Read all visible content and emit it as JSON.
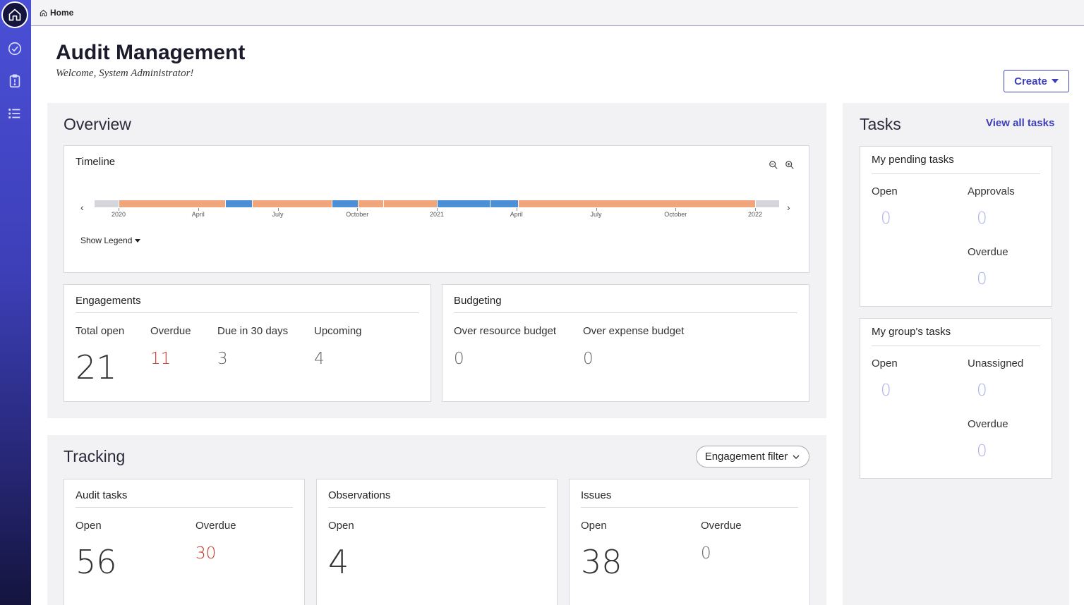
{
  "breadcrumb": {
    "home_label": "Home"
  },
  "header": {
    "title": "Audit Management",
    "subtitle": "Welcome, System Administrator!",
    "create_label": "Create"
  },
  "colors": {
    "accent": "#3d3fb8",
    "planned": "#f0a57a",
    "active": "#4b8fd6",
    "idle": "#d4d6dc",
    "danger": "#c0392b"
  },
  "overview": {
    "title": "Overview",
    "timeline": {
      "title": "Timeline",
      "show_legend": "Show Legend",
      "tick_labels": [
        "2020",
        "April",
        "July",
        "October",
        "2021",
        "April",
        "July",
        "October",
        "2022"
      ],
      "segments": [
        {
          "kind": "idle",
          "weight": 34
        },
        {
          "kind": "planned",
          "weight": 150
        },
        {
          "kind": "active",
          "weight": 38
        },
        {
          "kind": "planned",
          "weight": 113
        },
        {
          "kind": "active",
          "weight": 37
        },
        {
          "kind": "planned",
          "weight": 36
        },
        {
          "kind": "planned",
          "weight": 76
        },
        {
          "kind": "active",
          "weight": 74
        },
        {
          "kind": "active",
          "weight": 40
        },
        {
          "kind": "planned",
          "weight": 335
        },
        {
          "kind": "idle",
          "weight": 34
        }
      ]
    },
    "engagements": {
      "title": "Engagements",
      "total_open_label": "Total open",
      "total_open": "21",
      "overdue_label": "Overdue",
      "overdue": "11",
      "due30_label": "Due in 30 days",
      "due30": "3",
      "upcoming_label": "Upcoming",
      "upcoming": "4"
    },
    "budgeting": {
      "title": "Budgeting",
      "resource_label": "Over resource budget",
      "resource": "0",
      "expense_label": "Over expense budget",
      "expense": "0"
    }
  },
  "tracking": {
    "title": "Tracking",
    "filter_label": "Engagement filter",
    "audit_tasks": {
      "title": "Audit tasks",
      "open_label": "Open",
      "open": "56",
      "overdue_label": "Overdue",
      "overdue": "30"
    },
    "observations": {
      "title": "Observations",
      "open_label": "Open",
      "open": "4"
    },
    "issues": {
      "title": "Issues",
      "open_label": "Open",
      "open": "38",
      "overdue_label": "Overdue",
      "overdue": "0"
    }
  },
  "tasks": {
    "title": "Tasks",
    "view_all": "View all tasks",
    "pending": {
      "title": "My pending tasks",
      "open_label": "Open",
      "open": "0",
      "approvals_label": "Approvals",
      "approvals": "0",
      "overdue_label": "Overdue",
      "overdue": "0"
    },
    "group": {
      "title": "My group's tasks",
      "open_label": "Open",
      "open": "0",
      "unassigned_label": "Unassigned",
      "unassigned": "0",
      "overdue_label": "Overdue",
      "overdue": "0"
    }
  }
}
